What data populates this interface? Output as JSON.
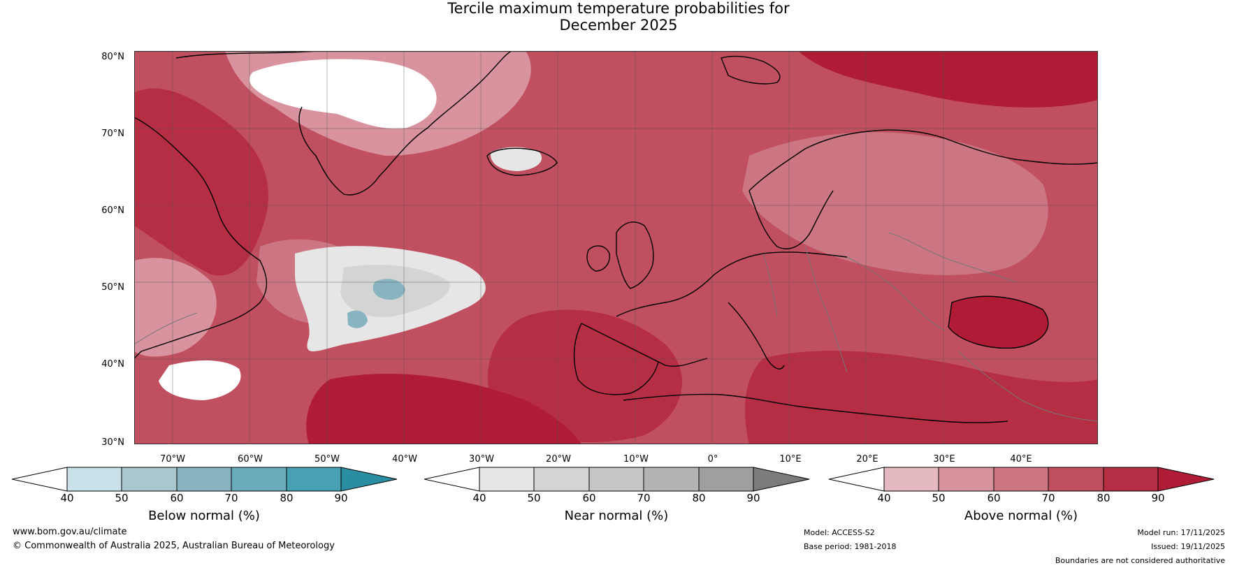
{
  "title": {
    "line1": "Tercile maximum temperature probabilities for",
    "line2": "December 2025"
  },
  "map": {
    "lat_labels": [
      "80°N",
      "70°N",
      "60°N",
      "50°N",
      "40°N",
      "30°N"
    ],
    "lon_labels": [
      "70°W",
      "60°W",
      "50°W",
      "40°W",
      "30°W",
      "20°W",
      "10°W",
      "0°",
      "10°E",
      "20°E",
      "30°E",
      "40°E"
    ],
    "lat_range": [
      30,
      81
    ],
    "lon_range": [
      -75,
      50
    ]
  },
  "colorbars": {
    "below": {
      "title": "Below normal (%)",
      "ticks": [
        "40",
        "50",
        "60",
        "70",
        "80",
        "90"
      ],
      "colors": [
        "#ffffff",
        "#c9e1e8",
        "#a8c7cf",
        "#88b3c1",
        "#6aabbb",
        "#47a1b2",
        "#2a8ea2"
      ]
    },
    "near": {
      "title": "Near normal (%)",
      "ticks": [
        "40",
        "50",
        "60",
        "70",
        "80",
        "90"
      ],
      "colors": [
        "#ffffff",
        "#e6e6e6",
        "#d4d4d4",
        "#c6c6c6",
        "#b4b4b4",
        "#9f9f9f",
        "#7c7c7c"
      ]
    },
    "above": {
      "title": "Above normal (%)",
      "ticks": [
        "40",
        "50",
        "60",
        "70",
        "80",
        "90"
      ],
      "colors": [
        "#ffffff",
        "#e4b9c0",
        "#d9939e",
        "#cc7683",
        "#c0505f",
        "#b52e43",
        "#b01c35"
      ]
    }
  },
  "footer": {
    "website": "www.bom.gov.au/climate",
    "copyright": "© Commonwealth of Australia 2025, Australian Bureau of Meteorology",
    "model": "Model: ACCESS-S2",
    "base_period": "Base period: 1981-2018",
    "model_run": "Model run: 17/11/2025",
    "issued": "Issued: 19/11/2025",
    "disclaimer": "Boundaries are not considered authoritative"
  }
}
